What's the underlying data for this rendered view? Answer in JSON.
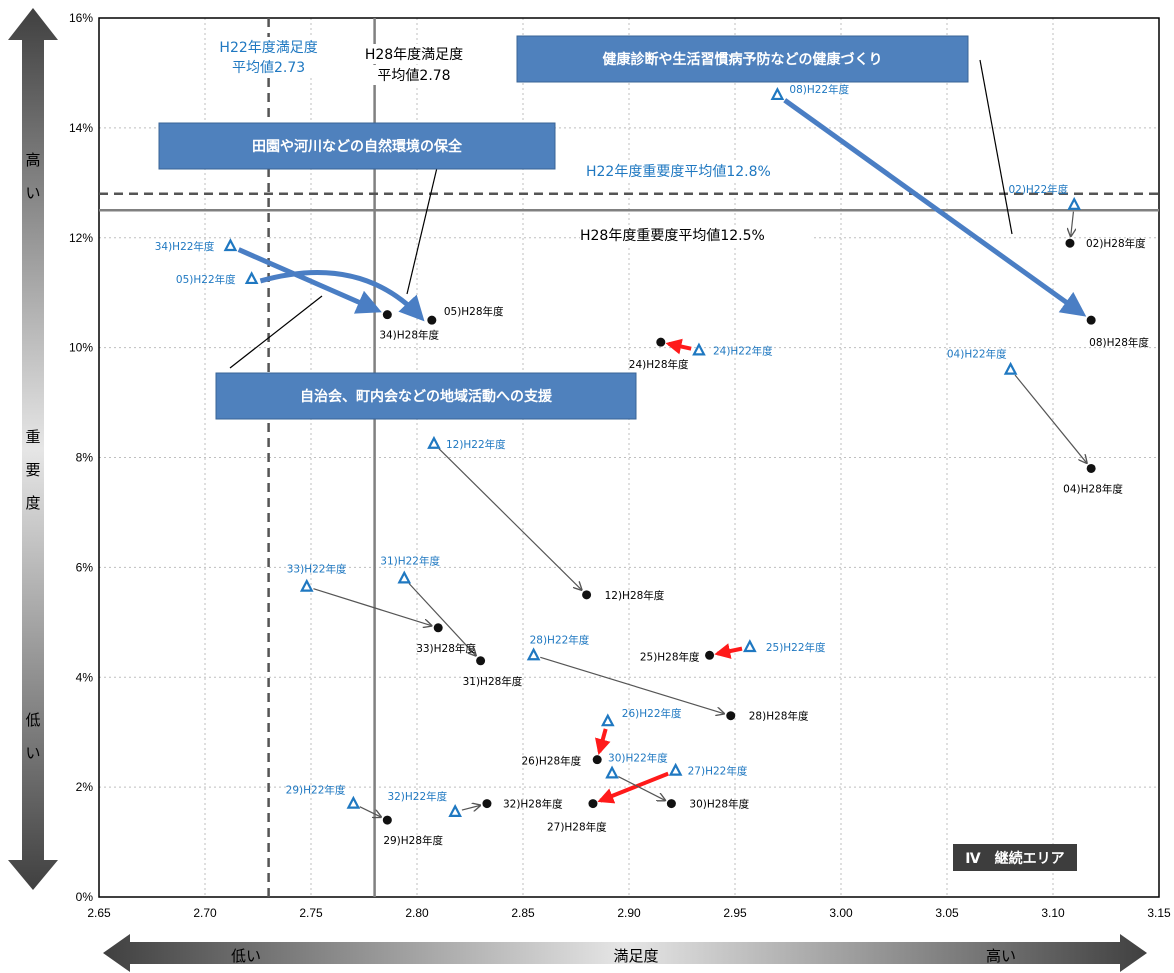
{
  "chart_data": {
    "type": "scatter",
    "x_ticks": [
      "2.65",
      "2.70",
      "2.75",
      "2.80",
      "2.85",
      "2.90",
      "2.95",
      "3.00",
      "3.05",
      "3.10",
      "3.15"
    ],
    "y_ticks": [
      "0%",
      "2%",
      "4%",
      "6%",
      "8%",
      "10%",
      "12%",
      "14%",
      "16%"
    ],
    "xlim": [
      2.65,
      3.15
    ],
    "ylim": [
      0,
      16
    ],
    "grid": true,
    "x_axis": {
      "low": "低い",
      "label": "満足度",
      "high": "高い"
    },
    "y_axis": {
      "high": [
        "高",
        "い"
      ],
      "label": [
        "重",
        "要",
        "度"
      ],
      "low": [
        "低",
        "い"
      ]
    },
    "reference_lines": {
      "h22_satisfaction": {
        "x": 2.73,
        "text": [
          "H22年度満足度",
          "平均値2.73"
        ],
        "color": "#1f78c1"
      },
      "h28_satisfaction": {
        "x": 2.78,
        "text": [
          "H28年度満足度",
          "平均値2.78"
        ]
      },
      "h22_importance": {
        "y": 12.8,
        "text": "H22年度重要度平均値12.8%",
        "color": "#1f78c1"
      },
      "h28_importance": {
        "y": 12.5,
        "text": "H28年度重要度平均値12.5%"
      }
    },
    "series": [
      {
        "name": "H22年度",
        "marker": "triangle",
        "color": "#1f78c1"
      },
      {
        "name": "H28年度",
        "marker": "circle",
        "color": "#000000"
      }
    ],
    "items": [
      {
        "id": "02",
        "h22": [
          3.11,
          12.6
        ],
        "h28": [
          3.108,
          11.9
        ],
        "l22": "02)H22年度",
        "l28": "02)H28年度",
        "arrow": "thin"
      },
      {
        "id": "04",
        "h22": [
          3.08,
          9.6
        ],
        "h28": [
          3.118,
          7.8
        ],
        "l22": "04)H22年度",
        "l28": "04)H28年度",
        "arrow": "thin"
      },
      {
        "id": "05",
        "h22": [
          2.722,
          11.25
        ],
        "h28": [
          2.807,
          10.5
        ],
        "l22": "05)H22年度",
        "l28": "05)H28年度",
        "arrow": "blue"
      },
      {
        "id": "08",
        "h22": [
          2.97,
          14.6
        ],
        "h28": [
          3.118,
          10.5
        ],
        "l22": "08)H22年度",
        "l28": "08)H28年度",
        "arrow": "blue"
      },
      {
        "id": "12",
        "h22": [
          2.808,
          8.25
        ],
        "h28": [
          2.88,
          5.5
        ],
        "l22": "12)H22年度",
        "l28": "12)H28年度",
        "arrow": "thin"
      },
      {
        "id": "24",
        "h22": [
          2.933,
          9.95
        ],
        "h28": [
          2.915,
          10.1
        ],
        "l22": "24)H22年度",
        "l28": "24)H28年度",
        "arrow": "red"
      },
      {
        "id": "25",
        "h22": [
          2.957,
          4.55
        ],
        "h28": [
          2.938,
          4.4
        ],
        "l22": "25)H22年度",
        "l28": "25)H28年度",
        "arrow": "red"
      },
      {
        "id": "26",
        "h22": [
          2.89,
          3.2
        ],
        "h28": [
          2.885,
          2.5
        ],
        "l22": "26)H22年度",
        "l28": "26)H28年度",
        "arrow": "red"
      },
      {
        "id": "27",
        "h22": [
          2.922,
          2.3
        ],
        "h28": [
          2.883,
          1.7
        ],
        "l22": "27)H22年度",
        "l28": "27)H28年度",
        "arrow": "red"
      },
      {
        "id": "28",
        "h22": [
          2.855,
          4.4
        ],
        "h28": [
          2.948,
          3.3
        ],
        "l22": "28)H22年度",
        "l28": "28)H28年度",
        "arrow": "thin"
      },
      {
        "id": "29",
        "h22": [
          2.77,
          1.7
        ],
        "h28": [
          2.786,
          1.4
        ],
        "l22": "29)H22年度",
        "l28": "29)H28年度",
        "arrow": "thin"
      },
      {
        "id": "30",
        "h22": [
          2.892,
          2.25
        ],
        "h28": [
          2.92,
          1.7
        ],
        "l22": "30)H22年度",
        "l28": "30)H28年度",
        "arrow": "thin"
      },
      {
        "id": "31",
        "h22": [
          2.794,
          5.8
        ],
        "h28": [
          2.83,
          4.3
        ],
        "l22": "31)H22年度",
        "l28": "31)H28年度",
        "arrow": "thin"
      },
      {
        "id": "32",
        "h22": [
          2.818,
          1.55
        ],
        "h28": [
          2.833,
          1.7
        ],
        "l22": "32)H22年度",
        "l28": "32)H28年度",
        "arrow": "thin"
      },
      {
        "id": "33",
        "h22": [
          2.748,
          5.65
        ],
        "h28": [
          2.81,
          4.9
        ],
        "l22": "33)H22年度",
        "l28": "33)H28年度",
        "arrow": "thin"
      },
      {
        "id": "34",
        "h22": [
          2.712,
          11.85
        ],
        "h28": [
          2.786,
          10.6
        ],
        "l22": "34)H22年度",
        "l28": "34)H28年度",
        "arrow": "blue"
      }
    ],
    "callouts": [
      {
        "text": "健康診断や生活習慣病予防などの健康づくり"
      },
      {
        "text": "田園や河川などの自然環境の保全"
      },
      {
        "text": "自治会、町内会などの地域活動への支援"
      }
    ],
    "area_badge": "Ⅳ　継続エリア"
  }
}
